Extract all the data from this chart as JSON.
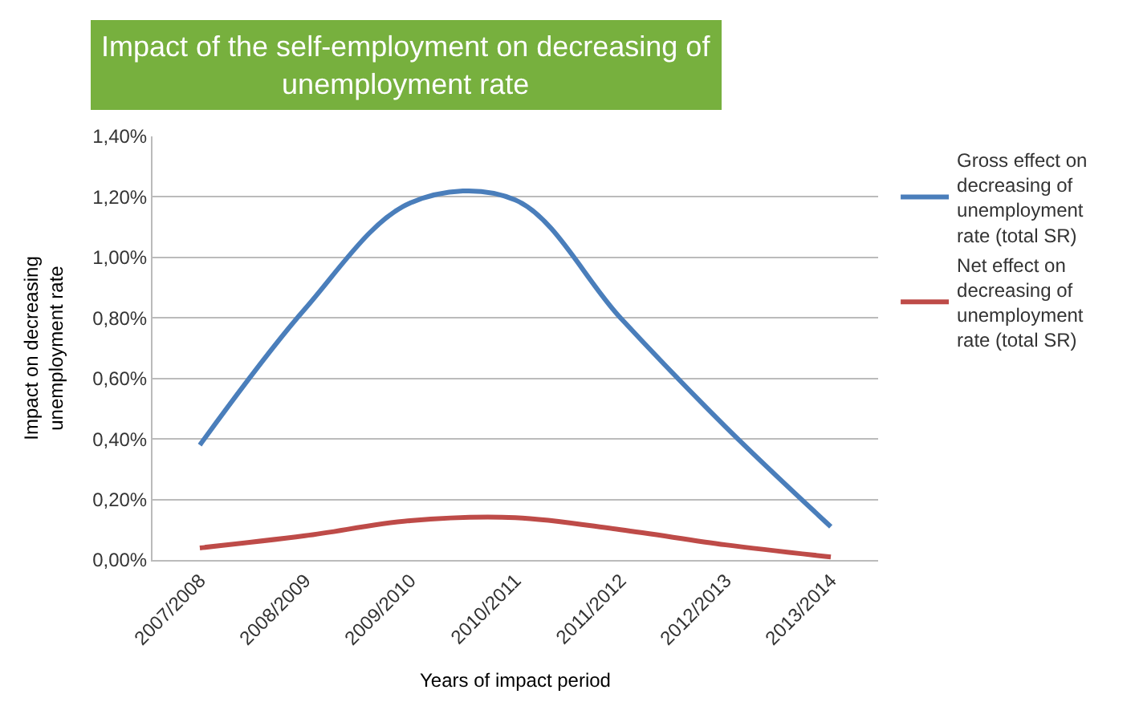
{
  "chart_data": {
    "type": "line",
    "title": "Impact of the self-employment on decreasing of unemployment rate",
    "xlabel": "Years of impact period",
    "ylabel": "Impact on decreasing unemployment rate",
    "categories": [
      "2007/2008",
      "2008/2009",
      "2009/2010",
      "2010/2011",
      "2011/2012",
      "2012/2013",
      "2013/2014"
    ],
    "series": [
      {
        "name": "Gross effect on decreasing of unemployment rate (total SR)",
        "color": "#4a7ebb",
        "values": [
          0.38,
          0.83,
          1.18,
          1.19,
          0.8,
          0.44,
          0.11
        ]
      },
      {
        "name": "Net effect on decreasing of unemployment rate (total SR)",
        "color": "#be4b48",
        "values": [
          0.04,
          0.08,
          0.13,
          0.14,
          0.1,
          0.05,
          0.01
        ]
      }
    ],
    "ylim": [
      0,
      1.4
    ],
    "yticks": [
      {
        "value": 0,
        "label": "0,00%"
      },
      {
        "value": 0.2,
        "label": "0,20%"
      },
      {
        "value": 0.4,
        "label": "0,40%"
      },
      {
        "value": 0.6,
        "label": "0,60%"
      },
      {
        "value": 0.8,
        "label": "0,80%"
      },
      {
        "value": 1.0,
        "label": "1,00%"
      },
      {
        "value": 1.2,
        "label": "1,20%"
      },
      {
        "value": 1.4,
        "label": "1,40%"
      }
    ],
    "grid": "y",
    "legend": "right",
    "marker": "none",
    "line_style": "solid"
  }
}
